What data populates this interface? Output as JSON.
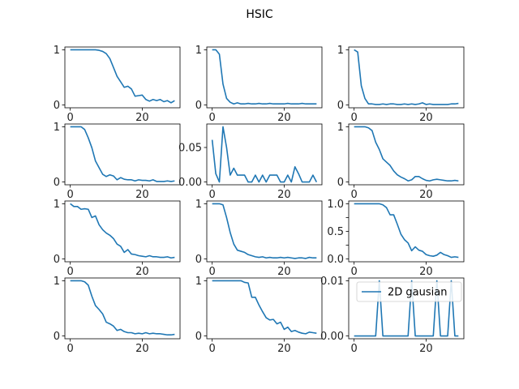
{
  "figure": {
    "title": "HSIC"
  },
  "chart_data": [
    {
      "type": "line",
      "row": 0,
      "col": 0,
      "xlim": [
        -1.5,
        30.5
      ],
      "ylim": [
        -0.05,
        1.05
      ],
      "xticks": [
        0,
        20
      ],
      "yticks": [
        0,
        1
      ],
      "series": [
        {
          "x": [
            0,
            1,
            2,
            3,
            4,
            5,
            6,
            7,
            8,
            9,
            10,
            11,
            12,
            13,
            14,
            15,
            16,
            17,
            18,
            19,
            20,
            21,
            22,
            23,
            24,
            25,
            26,
            27,
            28,
            29
          ],
          "y": [
            1,
            1,
            1,
            1,
            1,
            1,
            1,
            1,
            0.99,
            0.97,
            0.93,
            0.84,
            0.68,
            0.52,
            0.42,
            0.32,
            0.34,
            0.29,
            0.16,
            0.17,
            0.18,
            0.1,
            0.07,
            0.1,
            0.08,
            0.1,
            0.06,
            0.08,
            0.04,
            0.08
          ]
        }
      ]
    },
    {
      "type": "line",
      "row": 0,
      "col": 1,
      "xlim": [
        -1.5,
        30.5
      ],
      "ylim": [
        -0.05,
        1.05
      ],
      "xticks": [
        0,
        20
      ],
      "yticks": [
        0,
        1
      ],
      "series": [
        {
          "x": [
            0,
            1,
            2,
            3,
            4,
            5,
            6,
            7,
            8,
            9,
            10,
            11,
            12,
            13,
            14,
            15,
            16,
            17,
            18,
            19,
            20,
            21,
            22,
            23,
            24,
            25,
            26,
            27,
            28,
            29
          ],
          "y": [
            1,
            1,
            0.92,
            0.38,
            0.12,
            0.05,
            0.02,
            0.04,
            0.02,
            0.02,
            0.03,
            0.02,
            0.02,
            0.03,
            0.02,
            0.02,
            0.03,
            0.02,
            0.02,
            0.02,
            0.02,
            0.03,
            0.02,
            0.02,
            0.02,
            0.03,
            0.02,
            0.02,
            0.02,
            0.02
          ]
        }
      ]
    },
    {
      "type": "line",
      "row": 0,
      "col": 2,
      "xlim": [
        -1.5,
        30.5
      ],
      "ylim": [
        -0.05,
        1.05
      ],
      "xticks": [
        0,
        20
      ],
      "yticks": [
        0,
        1
      ],
      "series": [
        {
          "x": [
            0,
            1,
            2,
            3,
            4,
            5,
            6,
            7,
            8,
            9,
            10,
            11,
            12,
            13,
            14,
            15,
            16,
            17,
            18,
            19,
            20,
            21,
            22,
            23,
            24,
            25,
            26,
            27,
            28,
            29
          ],
          "y": [
            1,
            0.96,
            0.35,
            0.12,
            0.02,
            0.02,
            0.01,
            0.01,
            0.02,
            0.01,
            0.02,
            0.02,
            0.01,
            0.01,
            0.02,
            0.01,
            0.02,
            0.01,
            0.02,
            0.04,
            0.01,
            0.02,
            0.01,
            0.01,
            0.01,
            0.01,
            0.01,
            0.02,
            0.02,
            0.03
          ]
        }
      ]
    },
    {
      "type": "line",
      "row": 1,
      "col": 0,
      "xlim": [
        -1.5,
        30.5
      ],
      "ylim": [
        -0.05,
        1.05
      ],
      "xticks": [
        0,
        20
      ],
      "yticks": [
        0,
        1
      ],
      "series": [
        {
          "x": [
            0,
            1,
            2,
            3,
            4,
            5,
            6,
            7,
            8,
            9,
            10,
            11,
            12,
            13,
            14,
            15,
            16,
            17,
            18,
            19,
            20,
            21,
            22,
            23,
            24,
            25,
            26,
            27,
            28,
            29
          ],
          "y": [
            1,
            1,
            1,
            1,
            0.95,
            0.8,
            0.62,
            0.38,
            0.26,
            0.14,
            0.1,
            0.13,
            0.11,
            0.04,
            0.08,
            0.05,
            0.04,
            0.04,
            0.02,
            0.04,
            0.03,
            0.03,
            0.02,
            0.04,
            0.01,
            0.01,
            0.01,
            0.02,
            0.01,
            0.02
          ]
        }
      ]
    },
    {
      "type": "line",
      "row": 1,
      "col": 1,
      "xlim": [
        -1.5,
        30.5
      ],
      "ylim": [
        -0.004,
        0.084
      ],
      "xticks": [
        0,
        20
      ],
      "yticks": [
        0,
        0.05
      ],
      "ytick_labels": [
        "0.00",
        "0.05"
      ],
      "series": [
        {
          "x": [
            0,
            1,
            2,
            3,
            4,
            5,
            6,
            7,
            8,
            9,
            10,
            11,
            12,
            13,
            14,
            15,
            16,
            17,
            18,
            19,
            20,
            21,
            22,
            23,
            24,
            25,
            26,
            27,
            28,
            29
          ],
          "y": [
            0.061,
            0.012,
            0,
            0.08,
            0.05,
            0.01,
            0.02,
            0.01,
            0.01,
            0.01,
            0,
            0,
            0.01,
            0,
            0.01,
            0,
            0.01,
            0.01,
            0.01,
            0,
            0,
            0.01,
            0,
            0.022,
            0.012,
            0,
            0,
            0,
            0.01,
            0
          ]
        }
      ]
    },
    {
      "type": "line",
      "row": 1,
      "col": 2,
      "xlim": [
        -1.5,
        30.5
      ],
      "ylim": [
        -0.05,
        1.05
      ],
      "xticks": [
        0,
        20
      ],
      "yticks": [
        0,
        1
      ],
      "series": [
        {
          "x": [
            0,
            1,
            2,
            3,
            4,
            5,
            6,
            7,
            8,
            9,
            10,
            11,
            12,
            13,
            14,
            15,
            16,
            17,
            18,
            19,
            20,
            21,
            22,
            23,
            24,
            25,
            26,
            27,
            28,
            29
          ],
          "y": [
            1,
            1,
            1,
            1,
            0.98,
            0.93,
            0.72,
            0.59,
            0.42,
            0.36,
            0.3,
            0.2,
            0.13,
            0.09,
            0.06,
            0.02,
            0.04,
            0.1,
            0.1,
            0.06,
            0.03,
            0.02,
            0.04,
            0.05,
            0.04,
            0.03,
            0.02,
            0.02,
            0.03,
            0.02
          ]
        }
      ]
    },
    {
      "type": "line",
      "row": 2,
      "col": 0,
      "xlim": [
        -1.5,
        30.5
      ],
      "ylim": [
        -0.05,
        1.05
      ],
      "xticks": [
        0,
        20
      ],
      "yticks": [
        0,
        1
      ],
      "series": [
        {
          "x": [
            0,
            1,
            2,
            3,
            4,
            5,
            6,
            7,
            8,
            9,
            10,
            11,
            12,
            13,
            14,
            15,
            16,
            17,
            18,
            19,
            20,
            21,
            22,
            23,
            24,
            25,
            26,
            27,
            28,
            29
          ],
          "y": [
            1,
            0.95,
            0.95,
            0.9,
            0.91,
            0.9,
            0.75,
            0.78,
            0.62,
            0.53,
            0.47,
            0.43,
            0.37,
            0.27,
            0.23,
            0.12,
            0.17,
            0.09,
            0.08,
            0.06,
            0.05,
            0.04,
            0.06,
            0.04,
            0.04,
            0.03,
            0.03,
            0.04,
            0.02,
            0.03
          ]
        }
      ]
    },
    {
      "type": "line",
      "row": 2,
      "col": 1,
      "xlim": [
        -1.5,
        30.5
      ],
      "ylim": [
        -0.05,
        1.05
      ],
      "xticks": [
        0,
        20
      ],
      "yticks": [
        0,
        1
      ],
      "series": [
        {
          "x": [
            0,
            1,
            2,
            3,
            4,
            5,
            6,
            7,
            8,
            9,
            10,
            11,
            12,
            13,
            14,
            15,
            16,
            17,
            18,
            19,
            20,
            21,
            22,
            23,
            24,
            25,
            26,
            27,
            28,
            29
          ],
          "y": [
            1,
            1,
            1,
            0.98,
            0.75,
            0.48,
            0.27,
            0.16,
            0.14,
            0.12,
            0.08,
            0.06,
            0.04,
            0.03,
            0.04,
            0.02,
            0.03,
            0.02,
            0.02,
            0.03,
            0.02,
            0.03,
            0.02,
            0.01,
            0.02,
            0.02,
            0.01,
            0.03,
            0.02,
            0.02
          ]
        }
      ]
    },
    {
      "type": "line",
      "row": 2,
      "col": 2,
      "xlim": [
        -1.5,
        30.5
      ],
      "ylim": [
        -0.05,
        1.05
      ],
      "xticks": [
        0,
        20
      ],
      "yticks": [
        0,
        0.25,
        0.5,
        0.75,
        1
      ],
      "ytick_labels": [
        "0.0",
        "0.5",
        "1.0"
      ],
      "ytick_label_values": [
        0,
        0.5,
        1
      ],
      "series": [
        {
          "x": [
            0,
            1,
            2,
            3,
            4,
            5,
            6,
            7,
            8,
            9,
            10,
            11,
            12,
            13,
            14,
            15,
            16,
            17,
            18,
            19,
            20,
            21,
            22,
            23,
            24,
            25,
            26,
            27,
            28,
            29
          ],
          "y": [
            1,
            1,
            1,
            1,
            1,
            1,
            1,
            1,
            0.98,
            0.93,
            0.8,
            0.8,
            0.63,
            0.45,
            0.35,
            0.29,
            0.15,
            0.22,
            0.16,
            0.14,
            0.08,
            0.06,
            0.05,
            0.07,
            0.12,
            0.08,
            0.06,
            0.03,
            0.04,
            0.03
          ]
        }
      ]
    },
    {
      "type": "line",
      "row": 3,
      "col": 0,
      "xlim": [
        -1.5,
        30.5
      ],
      "ylim": [
        -0.05,
        1.05
      ],
      "xticks": [
        0,
        20
      ],
      "yticks": [
        0,
        1
      ],
      "xtick_labels_visible": true,
      "series": [
        {
          "x": [
            0,
            1,
            2,
            3,
            4,
            5,
            6,
            7,
            8,
            9,
            10,
            11,
            12,
            13,
            14,
            15,
            16,
            17,
            18,
            19,
            20,
            21,
            22,
            23,
            24,
            25,
            26,
            27,
            28,
            29
          ],
          "y": [
            1,
            1,
            1,
            1,
            0.98,
            0.92,
            0.72,
            0.55,
            0.48,
            0.4,
            0.25,
            0.22,
            0.18,
            0.1,
            0.12,
            0.08,
            0.06,
            0.06,
            0.04,
            0.05,
            0.04,
            0.06,
            0.04,
            0.05,
            0.04,
            0.04,
            0.03,
            0.02,
            0.02,
            0.03
          ]
        }
      ]
    },
    {
      "type": "line",
      "row": 3,
      "col": 1,
      "xlim": [
        -1.5,
        30.5
      ],
      "ylim": [
        -0.05,
        1.05
      ],
      "xticks": [
        0,
        20
      ],
      "yticks": [
        0,
        1
      ],
      "xtick_labels_visible": true,
      "series": [
        {
          "x": [
            0,
            1,
            2,
            3,
            4,
            5,
            6,
            7,
            8,
            9,
            10,
            11,
            12,
            13,
            14,
            15,
            16,
            17,
            18,
            19,
            20,
            21,
            22,
            23,
            24,
            25,
            26,
            27,
            28,
            29
          ],
          "y": [
            1,
            1,
            1,
            1,
            1,
            1,
            1,
            1,
            1,
            0.97,
            0.96,
            0.7,
            0.7,
            0.56,
            0.44,
            0.33,
            0.29,
            0.3,
            0.22,
            0.25,
            0.12,
            0.16,
            0.08,
            0.1,
            0.07,
            0.05,
            0.04,
            0.07,
            0.06,
            0.05
          ]
        }
      ]
    },
    {
      "type": "line",
      "row": 3,
      "col": 2,
      "xlim": [
        -1.5,
        30.5
      ],
      "ylim": [
        -0.0005,
        0.0105
      ],
      "xticks": [
        0,
        20
      ],
      "yticks": [
        0,
        0.01
      ],
      "ytick_labels": [
        "0.00",
        "0.01"
      ],
      "xtick_labels_visible": true,
      "legend": {
        "position": "upper-right",
        "entries": [
          "2D gausian"
        ]
      },
      "series": [
        {
          "name": "2D gausian",
          "x": [
            0,
            1,
            2,
            3,
            4,
            5,
            6,
            7,
            8,
            9,
            10,
            11,
            12,
            13,
            14,
            15,
            16,
            17,
            18,
            19,
            20,
            21,
            22,
            23,
            24,
            25,
            26,
            27,
            28,
            29
          ],
          "y": [
            0,
            0,
            0,
            0,
            0,
            0,
            0,
            0.01,
            0,
            0,
            0,
            0,
            0,
            0,
            0,
            0,
            0.01,
            0,
            0,
            0,
            0,
            0,
            0,
            0.01,
            0,
            0,
            0,
            0.01,
            0,
            0
          ]
        }
      ]
    }
  ],
  "colors": {
    "line": "#1f77b4",
    "axes": "#000000",
    "background": "#ffffff"
  }
}
